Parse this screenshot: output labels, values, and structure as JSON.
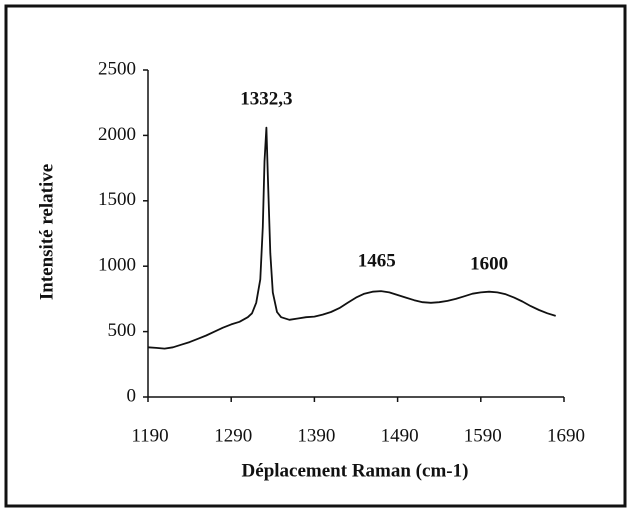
{
  "chart_data": {
    "type": "line",
    "x_label": "Déplacement Raman (cm-1)",
    "y_label": "Intensité relative",
    "x": [
      1190,
      1200,
      1210,
      1220,
      1230,
      1240,
      1250,
      1260,
      1270,
      1280,
      1290,
      1300,
      1310,
      1315,
      1320,
      1325,
      1328,
      1330,
      1332.3,
      1334,
      1337,
      1340,
      1345,
      1350,
      1360,
      1370,
      1380,
      1390,
      1400,
      1410,
      1420,
      1430,
      1440,
      1450,
      1460,
      1470,
      1480,
      1490,
      1500,
      1510,
      1520,
      1530,
      1540,
      1550,
      1560,
      1570,
      1580,
      1590,
      1600,
      1610,
      1620,
      1630,
      1640,
      1650,
      1660,
      1670,
      1680
    ],
    "series": [
      {
        "color": "#111111",
        "values": [
          380,
          375,
          370,
          380,
          400,
          420,
          445,
          470,
          500,
          530,
          555,
          575,
          610,
          640,
          720,
          900,
          1300,
          1800,
          2060,
          1700,
          1100,
          800,
          650,
          610,
          590,
          600,
          610,
          615,
          630,
          650,
          680,
          720,
          760,
          790,
          805,
          810,
          800,
          780,
          760,
          740,
          725,
          720,
          725,
          735,
          750,
          770,
          790,
          800,
          805,
          800,
          785,
          760,
          730,
          695,
          665,
          640,
          620
        ]
      }
    ],
    "xlim": [
      1190,
      1690
    ],
    "xticks": [
      1190,
      1290,
      1390,
      1490,
      1590,
      1690
    ],
    "ylim": [
      0,
      2500
    ],
    "yticks": [
      0,
      500,
      1000,
      1500,
      2000,
      2500
    ],
    "annotations": [
      {
        "text": "1332,3",
        "x": 1332.3,
        "y": 2270
      },
      {
        "text": "1465",
        "x": 1465,
        "y": 1032
      },
      {
        "text": "1600",
        "x": 1600,
        "y": 1010
      }
    ]
  }
}
